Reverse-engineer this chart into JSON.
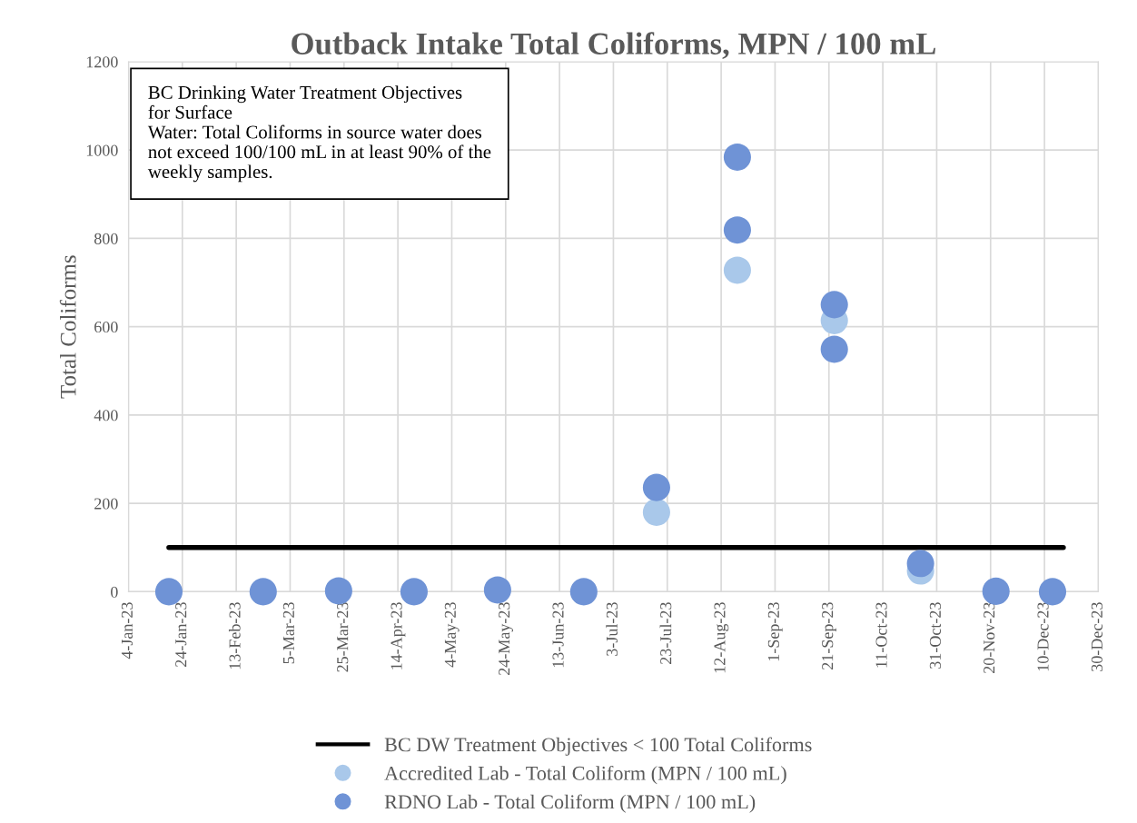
{
  "chart_data": {
    "type": "scatter",
    "title": "Outback Intake Total Coliforms, MPN / 100 mL",
    "ylabel": "Total Coliforms",
    "annotations": [
      "BC Drinking Water Treatment Objectives\nfor Surface\nWater: Total Coliforms in source water does\nnot exceed 100/100 mL in at least 90% of the\nweekly samples."
    ],
    "series": [
      {
        "name": "BC DW Treatment Objectives < 100 Total Coliforms",
        "type": "line",
        "color": "#000000",
        "marker": "none",
        "line_style": "solid",
        "x": [
          "2023-01-19",
          "2023-12-17"
        ],
        "values": [
          100,
          100
        ]
      },
      {
        "name": "Accredited Lab - Total Coliform (MPN / 100 mL)",
        "color": "#a9c8ea",
        "marker": "circle",
        "x": [
          "2023-07-19",
          "2023-08-18",
          "2023-09-23",
          "2023-10-25"
        ],
        "values": [
          180,
          728,
          614,
          47
        ]
      },
      {
        "name": "RDNO Lab - Total Coliform (MPN / 100 mL)",
        "color": "#6f93d6",
        "marker": "circle",
        "x": [
          "2023-01-19",
          "2023-02-23",
          "2023-03-23",
          "2023-04-20",
          "2023-05-21",
          "2023-06-22",
          "2023-07-19",
          "2023-08-18",
          "2023-08-18",
          "2023-09-23",
          "2023-09-23",
          "2023-10-25",
          "2023-11-22",
          "2023-12-13"
        ],
        "values": [
          0,
          0,
          2,
          0,
          4,
          0,
          236,
          984,
          819,
          650,
          549,
          64,
          1,
          0
        ]
      }
    ],
    "xlim": [
      "2023-01-04",
      "2023-12-30"
    ],
    "xticks": [
      {
        "value": "2023-01-04",
        "label": "4-Jan-23"
      },
      {
        "value": "2023-01-24",
        "label": "24-Jan-23"
      },
      {
        "value": "2023-02-13",
        "label": "13-Feb-23"
      },
      {
        "value": "2023-03-05",
        "label": "5-Mar-23"
      },
      {
        "value": "2023-03-25",
        "label": "25-Mar-23"
      },
      {
        "value": "2023-04-14",
        "label": "14-Apr-23"
      },
      {
        "value": "2023-05-04",
        "label": "4-May-23"
      },
      {
        "value": "2023-05-24",
        "label": "24-May-23"
      },
      {
        "value": "2023-06-13",
        "label": "13-Jun-23"
      },
      {
        "value": "2023-07-03",
        "label": "3-Jul-23"
      },
      {
        "value": "2023-07-23",
        "label": "23-Jul-23"
      },
      {
        "value": "2023-08-12",
        "label": "12-Aug-23"
      },
      {
        "value": "2023-09-01",
        "label": "1-Sep-23"
      },
      {
        "value": "2023-09-21",
        "label": "21-Sep-23"
      },
      {
        "value": "2023-10-11",
        "label": "11-Oct-23"
      },
      {
        "value": "2023-10-31",
        "label": "31-Oct-23"
      },
      {
        "value": "2023-11-20",
        "label": "20-Nov-23"
      },
      {
        "value": "2023-12-10",
        "label": "10-Dec-23"
      },
      {
        "value": "2023-12-30",
        "label": "30-Dec-23"
      }
    ],
    "ylim": [
      0,
      1200
    ],
    "yticks": [
      0,
      200,
      400,
      600,
      800,
      1000,
      1200
    ],
    "grid": true,
    "legend": "bottom"
  }
}
